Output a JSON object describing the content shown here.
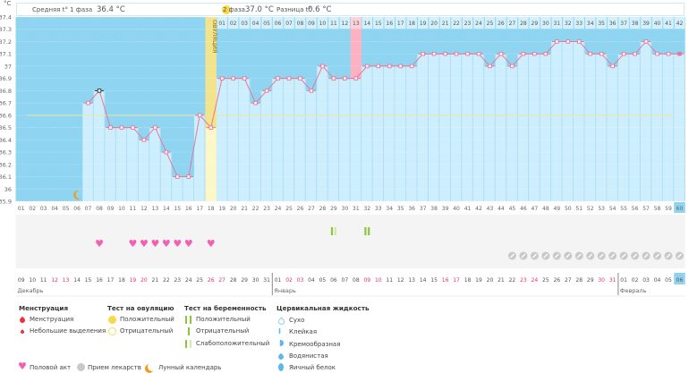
{
  "header": {
    "unit": "°С",
    "phase1_label": "Средняя t° 1 фаза",
    "phase1_value": "36.4 °С",
    "phase2_label": "2 фаза",
    "phase2_value": "37.0 °С",
    "diff_label": "Разница t°",
    "diff_value": "0.6 °С"
  },
  "chart_data": {
    "type": "line",
    "title": "",
    "xlabel": "",
    "ylabel": "°С",
    "ylim": [
      35.9,
      37.4
    ],
    "yticks": [
      "37.4",
      "37.3",
      "37.2",
      "37.1",
      "37",
      "36.9",
      "36.8",
      "36.7",
      "36.6",
      "36.5",
      "36.4",
      "36.3",
      "36.2",
      "36.1",
      "36",
      "35.9"
    ],
    "ytick_values": [
      37.4,
      37.3,
      37.2,
      37.1,
      37.0,
      36.9,
      36.8,
      36.7,
      36.6,
      36.5,
      36.4,
      36.3,
      36.2,
      36.1,
      36.0,
      35.9
    ],
    "x": [
      "01",
      "02",
      "03",
      "04",
      "05",
      "06",
      "07",
      "08",
      "09",
      "10",
      "11",
      "12",
      "13",
      "14",
      "15",
      "16",
      "17",
      "18",
      "19",
      "20",
      "21",
      "22",
      "23",
      "24",
      "25",
      "26",
      "27",
      "28",
      "29",
      "30",
      "31",
      "32",
      "33",
      "34",
      "35",
      "36",
      "37",
      "38",
      "39",
      "40",
      "41",
      "42",
      "43",
      "44",
      "45",
      "46",
      "47",
      "48",
      "49",
      "50",
      "51",
      "52",
      "53",
      "54",
      "55",
      "56",
      "57",
      "58",
      "59",
      "60"
    ],
    "series": [
      {
        "name": "Базальная температура",
        "values": [
          null,
          null,
          null,
          null,
          null,
          null,
          36.7,
          36.8,
          36.5,
          36.5,
          36.5,
          36.4,
          36.5,
          36.3,
          36.1,
          36.1,
          36.6,
          36.5,
          36.9,
          36.9,
          36.9,
          36.7,
          36.8,
          36.9,
          36.9,
          36.9,
          36.8,
          37.0,
          36.9,
          36.9,
          36.9,
          37.0,
          37.0,
          37.0,
          37.0,
          37.0,
          37.1,
          37.1,
          37.1,
          37.1,
          37.1,
          37.1,
          37.0,
          37.1,
          37.0,
          37.1,
          37.1,
          37.1,
          37.2,
          37.2,
          37.2,
          37.1,
          37.1,
          37.0,
          37.1,
          37.1,
          37.2,
          37.1,
          37.1,
          37.1
        ]
      }
    ],
    "coverline": 36.6,
    "ovulation_day": 18,
    "ovulation_label": "ОВУЛЯЦИЯ",
    "highlighted_day": 31,
    "selected_day": 8,
    "current_day": 60,
    "moon_day": 6,
    "post_ovulation_labels": [
      "01",
      "02",
      "03",
      "04",
      "05",
      "06",
      "07",
      "08",
      "09",
      "10",
      "11",
      "12",
      "13",
      "14",
      "15",
      "16",
      "17",
      "18",
      "19",
      "20",
      "21",
      "22",
      "23",
      "24",
      "25",
      "26",
      "27",
      "28",
      "29",
      "30",
      "31",
      "32",
      "33",
      "34",
      "35",
      "36",
      "37",
      "38",
      "39",
      "40",
      "41",
      "42"
    ],
    "grid": true,
    "legend": "bottom"
  },
  "markers": {
    "pregnancy_tests": [
      {
        "day": 29,
        "result": "weak_positive"
      },
      {
        "day": 32,
        "result": "positive"
      }
    ],
    "intercourse_days": [
      8,
      11,
      12,
      13,
      14,
      15,
      16,
      18
    ],
    "medication_days": [
      45,
      46,
      47,
      48,
      49,
      50,
      51,
      52,
      53,
      54,
      55,
      56,
      57,
      58,
      59,
      60
    ]
  },
  "calendar": {
    "dates": [
      {
        "d": "09",
        "red": false
      },
      {
        "d": "10",
        "red": false
      },
      {
        "d": "11",
        "red": false
      },
      {
        "d": "12",
        "red": true
      },
      {
        "d": "13",
        "red": true
      },
      {
        "d": "14",
        "red": false
      },
      {
        "d": "15",
        "red": false
      },
      {
        "d": "16",
        "red": false
      },
      {
        "d": "17",
        "red": false
      },
      {
        "d": "18",
        "red": false
      },
      {
        "d": "19",
        "red": true
      },
      {
        "d": "20",
        "red": true
      },
      {
        "d": "21",
        "red": false
      },
      {
        "d": "22",
        "red": false
      },
      {
        "d": "23",
        "red": false
      },
      {
        "d": "24",
        "red": false
      },
      {
        "d": "25",
        "red": false
      },
      {
        "d": "26",
        "red": true
      },
      {
        "d": "27",
        "red": true
      },
      {
        "d": "28",
        "red": false
      },
      {
        "d": "29",
        "red": false
      },
      {
        "d": "30",
        "red": false
      },
      {
        "d": "31",
        "red": false
      },
      {
        "d": "01",
        "red": false
      },
      {
        "d": "02",
        "red": true
      },
      {
        "d": "03",
        "red": true
      },
      {
        "d": "04",
        "red": false
      },
      {
        "d": "05",
        "red": false
      },
      {
        "d": "06",
        "red": false
      },
      {
        "d": "07",
        "red": false
      },
      {
        "d": "08",
        "red": false
      },
      {
        "d": "09",
        "red": true
      },
      {
        "d": "10",
        "red": true
      },
      {
        "d": "11",
        "red": false
      },
      {
        "d": "12",
        "red": false
      },
      {
        "d": "13",
        "red": false
      },
      {
        "d": "14",
        "red": false
      },
      {
        "d": "15",
        "red": false
      },
      {
        "d": "16",
        "red": true
      },
      {
        "d": "17",
        "red": true
      },
      {
        "d": "18",
        "red": false
      },
      {
        "d": "19",
        "red": false
      },
      {
        "d": "20",
        "red": false
      },
      {
        "d": "21",
        "red": false
      },
      {
        "d": "22",
        "red": false
      },
      {
        "d": "23",
        "red": true
      },
      {
        "d": "24",
        "red": true
      },
      {
        "d": "25",
        "red": false
      },
      {
        "d": "26",
        "red": false
      },
      {
        "d": "27",
        "red": false
      },
      {
        "d": "28",
        "red": false
      },
      {
        "d": "29",
        "red": false
      },
      {
        "d": "30",
        "red": true
      },
      {
        "d": "31",
        "red": true
      },
      {
        "d": "01",
        "red": false
      },
      {
        "d": "02",
        "red": false
      },
      {
        "d": "03",
        "red": false
      },
      {
        "d": "04",
        "red": false
      },
      {
        "d": "05",
        "red": false
      },
      {
        "d": "06",
        "red": false
      }
    ],
    "months": [
      {
        "name": "Декабрь",
        "start_day": 1
      },
      {
        "name": "Январь",
        "start_day": 24
      },
      {
        "name": "Февраль",
        "start_day": 55
      }
    ]
  },
  "colors": {
    "background_dark": "#8fd5f1",
    "column_light": "#cdeefc",
    "line": "#e8779b",
    "ovulation": "#f3e38c",
    "ovulation_light": "#fdf6c8",
    "highlight": "#fbb3c4",
    "coverline": "#efe6a0",
    "weekend": "#e8336b",
    "heart": "#f45fb3",
    "pregnancy": "#8cc63f",
    "pill": "#c9c9c9",
    "moon": "#f39a1e"
  },
  "legend": {
    "menstruation": {
      "title": "Менструация",
      "items": [
        "Менструация",
        "Небольшие выделения"
      ]
    },
    "ovulation_test": {
      "title": "Тест на овуляцию",
      "items": [
        "Положительный",
        "Отрицательный"
      ]
    },
    "pregnancy_test": {
      "title": "Тест на беременность",
      "items": [
        "Положительный",
        "Отрицательный",
        "Слабоположительный"
      ]
    },
    "cervical": {
      "title": "Цервикальная жидкость",
      "items": [
        "Сухо",
        "Клейкая",
        "Кремообразная",
        "Водянистая",
        "Яичный белок"
      ]
    },
    "other": [
      "Половой акт",
      "Прием лекарств",
      "Лунный календарь"
    ]
  }
}
